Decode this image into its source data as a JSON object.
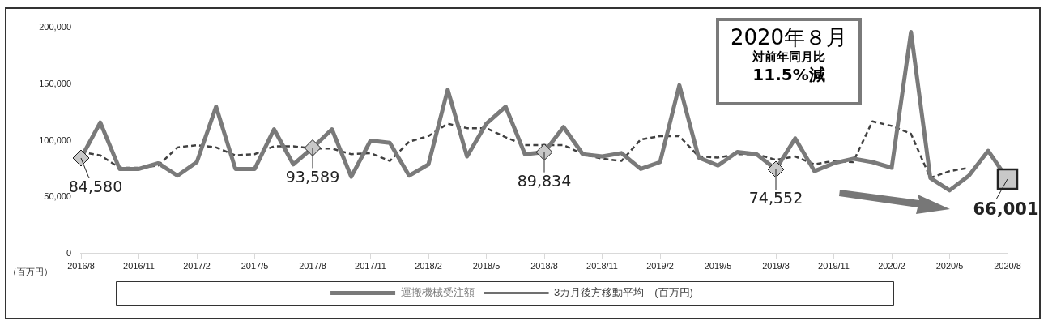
{
  "chart_data": {
    "type": "line",
    "categories": [
      "2016/8",
      null,
      null,
      "2016/11",
      null,
      null,
      "2017/2",
      null,
      null,
      "2017/5",
      null,
      null,
      "2017/8",
      null,
      null,
      "2017/11",
      null,
      null,
      "2018/2",
      null,
      null,
      "2018/5",
      null,
      null,
      "2018/8",
      null,
      null,
      "2018/11",
      null,
      null,
      "2019/2",
      null,
      null,
      "2019/5",
      null,
      null,
      "2019/8",
      null,
      null,
      "2019/11",
      null,
      null,
      "2020/2",
      null,
      null,
      "2020/5",
      null,
      null,
      "2020/8"
    ],
    "series": [
      {
        "name": "運搬機械受注額",
        "color": "#7a7a7a",
        "line_style": "solid",
        "values": [
          84580,
          116000,
          75000,
          75000,
          80000,
          69000,
          81000,
          130000,
          75000,
          75000,
          110000,
          79000,
          93589,
          110000,
          68000,
          100000,
          98000,
          69000,
          79000,
          145000,
          86000,
          115000,
          130000,
          88000,
          89834,
          112000,
          88000,
          86000,
          89000,
          75000,
          81000,
          149000,
          85000,
          78000,
          90000,
          88000,
          74552,
          102000,
          73000,
          80000,
          84000,
          81000,
          76000,
          196000,
          67000,
          56000,
          69000,
          91000,
          66001
        ],
        "value_labels": [
          "84,580",
          null,
          null,
          null,
          null,
          null,
          null,
          null,
          null,
          null,
          null,
          null,
          "93,589",
          null,
          null,
          null,
          null,
          null,
          null,
          null,
          null,
          null,
          null,
          null,
          "89,834",
          null,
          null,
          null,
          null,
          null,
          null,
          null,
          null,
          null,
          null,
          null,
          "74,552",
          null,
          null,
          null,
          null,
          null,
          null,
          null,
          null,
          null,
          null,
          null,
          "66,001"
        ]
      },
      {
        "name": "3カ月後方移動平均　(百万円)",
        "color": "#404040",
        "line_style": "dashed",
        "values": [
          90000,
          87000,
          76000,
          76000,
          78000,
          94000,
          96000,
          94000,
          87000,
          88000,
          95000,
          95000,
          93000,
          93000,
          88000,
          89000,
          82000,
          99000,
          104000,
          115000,
          111000,
          111000,
          103000,
          96000,
          96000,
          96000,
          88000,
          84000,
          82000,
          101000,
          104000,
          104000,
          86000,
          85000,
          88000,
          88000,
          83000,
          86000,
          79000,
          82000,
          81000,
          117000,
          113000,
          106000,
          67000,
          73000,
          76000,
          null,
          null
        ]
      }
    ],
    "ylim": [
      0,
      200000
    ],
    "yticks": [
      {
        "value": 0,
        "label": "0"
      },
      {
        "value": 50000,
        "label": "50,000"
      },
      {
        "value": 100000,
        "label": "100,000"
      },
      {
        "value": 150000,
        "label": "150,000"
      },
      {
        "value": 200000,
        "label": "200,000"
      }
    ],
    "grid": false,
    "legend": "bottom",
    "annotations": [
      "2020年８月",
      "対前年同月比",
      "11.5%減",
      "（百万円）"
    ]
  }
}
